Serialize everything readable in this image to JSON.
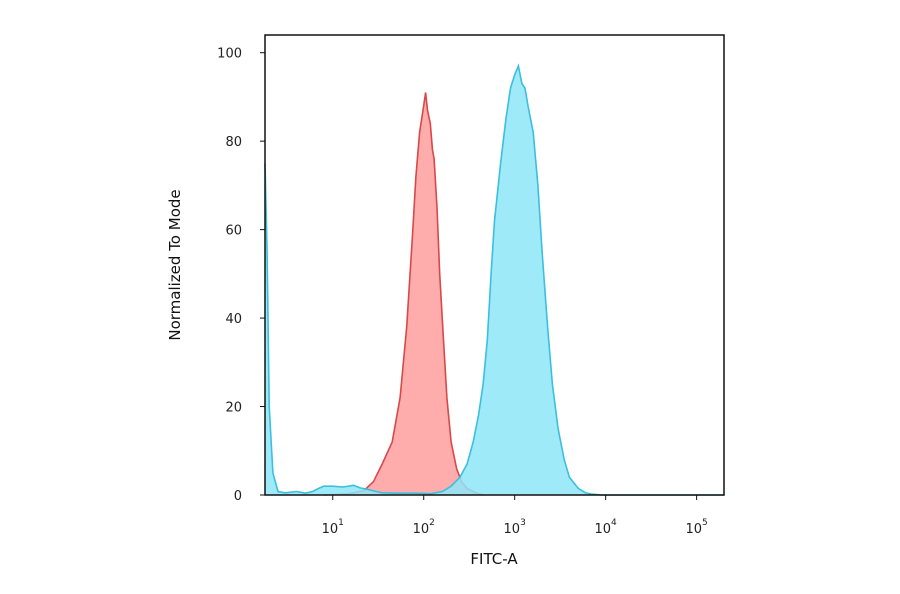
{
  "chart_data": {
    "type": "area",
    "title": "",
    "xlabel": "FITC-A",
    "ylabel": "Normalized To Mode",
    "x_scale": "log",
    "xlim": [
      1.8,
      200000
    ],
    "ylim": [
      0,
      104
    ],
    "x_ticks": [
      {
        "value": 10,
        "base": "10",
        "exp": "1"
      },
      {
        "value": 100,
        "base": "10",
        "exp": "2"
      },
      {
        "value": 1000,
        "base": "10",
        "exp": "3"
      },
      {
        "value": 10000,
        "base": "10",
        "exp": "4"
      },
      {
        "value": 100000,
        "base": "10",
        "exp": "5"
      }
    ],
    "y_ticks": [
      {
        "value": 0,
        "label": "0"
      },
      {
        "value": 20,
        "label": "20"
      },
      {
        "value": 40,
        "label": "40"
      },
      {
        "value": 60,
        "label": "60"
      },
      {
        "value": 80,
        "label": "80"
      },
      {
        "value": 100,
        "label": "100"
      }
    ],
    "grid": false,
    "legend": "none",
    "series": [
      {
        "fill": "#ff9e9e",
        "stroke": "#d94848",
        "x": [
          8,
          15,
          22,
          28,
          35,
          45,
          55,
          65,
          75,
          82,
          90,
          100,
          105,
          110,
          118,
          125,
          130,
          140,
          150,
          165,
          180,
          200,
          230,
          260,
          300,
          350,
          400,
          450
        ],
        "y": [
          0,
          0.3,
          1,
          3,
          7,
          12,
          22,
          38,
          58,
          72,
          82,
          88,
          91,
          87,
          84,
          78,
          76,
          65,
          50,
          35,
          22,
          12,
          6,
          3,
          1.5,
          0.8,
          0.3,
          0
        ]
      },
      {
        "fill": "#8ee6f8",
        "stroke": "#3bbfdf",
        "x": [
          1.8,
          1.9,
          2.0,
          2.2,
          2.5,
          3,
          4,
          5,
          6,
          7,
          8,
          10,
          13,
          17,
          20,
          25,
          30,
          35,
          50,
          80,
          120,
          160,
          200,
          250,
          300,
          350,
          400,
          450,
          500,
          550,
          600,
          700,
          800,
          900,
          1000,
          1100,
          1200,
          1300,
          1400,
          1600,
          1800,
          2000,
          2300,
          2600,
          3000,
          3500,
          4000,
          5000,
          6000,
          7000,
          8000,
          9000,
          12000,
          50000,
          200000
        ],
        "y": [
          75,
          55,
          20,
          5,
          0.8,
          0.5,
          0.8,
          0.4,
          0.8,
          1.5,
          2,
          2,
          1.8,
          2.2,
          1.6,
          1.2,
          0.8,
          0.5,
          0.4,
          0.4,
          0.3,
          0.8,
          2,
          4,
          7,
          12,
          18,
          25,
          35,
          50,
          62,
          75,
          85,
          92,
          95,
          97,
          93,
          92,
          88,
          82,
          70,
          55,
          38,
          25,
          15,
          8,
          4,
          1.5,
          0.5,
          0.2,
          0.1,
          0,
          0,
          0,
          0
        ]
      }
    ]
  }
}
